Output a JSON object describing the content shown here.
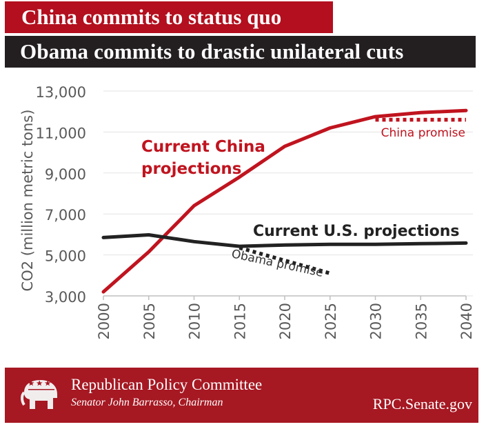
{
  "header": {
    "title_china": "China commits to status quo",
    "title_us": "Obama commits to drastic unilateral cuts"
  },
  "chart_data": {
    "type": "line",
    "ylabel": "CO2 (million metric tons)",
    "xlabel": "",
    "ylim": [
      3000,
      13000
    ],
    "xlim": [
      2000,
      2040
    ],
    "yticks": [
      3000,
      5000,
      7000,
      9000,
      11000,
      13000
    ],
    "ytick_labels": [
      "3,000",
      "5,000",
      "7,000",
      "9,000",
      "11,000",
      "13,000"
    ],
    "xticks": [
      2000,
      2005,
      2010,
      2015,
      2020,
      2025,
      2030,
      2035,
      2040
    ],
    "xtick_labels": [
      "2000",
      "2005",
      "2010",
      "2015",
      "2020",
      "2025",
      "2030",
      "2035",
      "2040"
    ],
    "grid": "horizontal",
    "series": [
      {
        "name": "Current China projections",
        "label": "Current China projections",
        "label_lines": [
          "Current China",
          "projections"
        ],
        "color": "#c0141f",
        "style": "solid",
        "x": [
          2000,
          2005,
          2010,
          2015,
          2020,
          2025,
          2030,
          2035,
          2040
        ],
        "y": [
          3200,
          5150,
          7400,
          8800,
          10300,
          11200,
          11750,
          11950,
          12050
        ]
      },
      {
        "name": "China promise",
        "label": "China promise",
        "color": "#c0141f",
        "style": "dotted",
        "x": [
          2030,
          2040
        ],
        "y": [
          11600,
          11600
        ]
      },
      {
        "name": "Current U.S. projections",
        "label": "Current U.S. projections",
        "color": "#222222",
        "style": "solid",
        "x": [
          2000,
          2005,
          2010,
          2015,
          2020,
          2025,
          2030,
          2035,
          2040
        ],
        "y": [
          5850,
          5980,
          5650,
          5420,
          5480,
          5520,
          5520,
          5550,
          5580
        ]
      },
      {
        "name": "Obama promise",
        "label": "Obama promise",
        "color": "#222222",
        "style": "dotted",
        "x": [
          2015,
          2025
        ],
        "y": [
          5350,
          4100
        ]
      }
    ]
  },
  "footer": {
    "organization": "Republican Policy Committee",
    "chairman": "Senator John Barrasso, Chairman",
    "url": "RPC.Senate.gov"
  },
  "colors": {
    "china_red": "#b30f1e",
    "us_dark": "#231f20",
    "footer_red": "#a61822"
  }
}
